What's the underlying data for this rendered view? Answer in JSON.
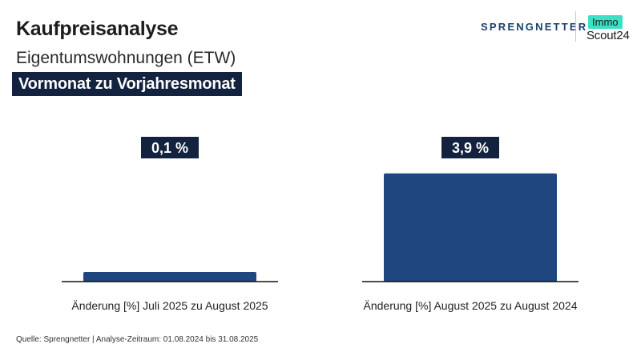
{
  "header": {
    "title": "Kaufpreisanalyse",
    "subtitle": "Eigentumswohnungen (ETW)",
    "tagline": "Vormonat zu Vorjahresmonat"
  },
  "logos": {
    "sprengnetter": "SPRENGNETTER",
    "immo": "Immo",
    "scout": "Scout24"
  },
  "chart_data": {
    "type": "bar",
    "categories": [
      "Änderung [%] Juli 2025 zu August 2025",
      "Änderung [%] August 2025 zu August 2024"
    ],
    "values": [
      0.1,
      3.9
    ],
    "value_labels": [
      "0,1 %",
      "3,9 %"
    ],
    "unit": "%",
    "ylim": [
      0,
      4.5
    ],
    "grid": false,
    "legend": "none"
  },
  "footer": {
    "source": "Quelle: Sprengnetter | Analyse-Zeitraum: 01.08.2024 bis 31.08.2025"
  },
  "colors": {
    "bar": "#1f467e",
    "label_bg": "#13223e",
    "accent_mint": "#3ce0c5",
    "brand_blue": "#1c3f6e"
  }
}
